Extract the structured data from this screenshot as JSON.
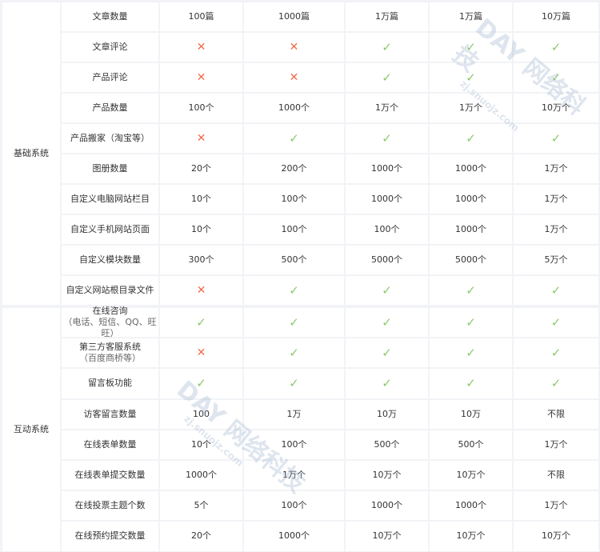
{
  "colors": {
    "check": "#8cc96a",
    "cross": "#f26b4d",
    "background": "#f2f3f6"
  },
  "icons": {
    "yes": "check-icon",
    "no": "cross-icon"
  },
  "symbols": {
    "yes": "✓",
    "no": "✕"
  },
  "watermark": {
    "logo": "DAY 网络科技",
    "url": "zj.snuojz.com"
  },
  "sections": [
    {
      "category": "基础系统",
      "rows": [
        {
          "feature": "文章数量",
          "values": [
            "100篇",
            "1000篇",
            "1万篇",
            "1万篇",
            "10万篇"
          ]
        },
        {
          "feature": "文章评论",
          "values": [
            "no",
            "no",
            "yes",
            "yes",
            "yes"
          ]
        },
        {
          "feature": "产品评论",
          "values": [
            "no",
            "no",
            "yes",
            "yes",
            "yes"
          ]
        },
        {
          "feature": "产品数量",
          "values": [
            "100个",
            "1000个",
            "1万个",
            "1万个",
            "10万个"
          ]
        },
        {
          "feature": "产品搬家（淘宝等）",
          "values": [
            "no",
            "yes",
            "yes",
            "yes",
            "yes"
          ]
        },
        {
          "feature": "图册数量",
          "values": [
            "20个",
            "200个",
            "1000个",
            "1000个",
            "1万个"
          ]
        },
        {
          "feature": "自定义电脑网站栏目",
          "values": [
            "10个",
            "100个",
            "1000个",
            "1000个",
            "1万个"
          ]
        },
        {
          "feature": "自定义手机网站页面",
          "values": [
            "10个",
            "100个",
            "100个",
            "1000个",
            "1万个"
          ]
        },
        {
          "feature": "自定义模块数量",
          "values": [
            "300个",
            "500个",
            "5000个",
            "5000个",
            "5万个"
          ]
        },
        {
          "feature": "自定义网站根目录文件",
          "values": [
            "no",
            "yes",
            "yes",
            "yes",
            "yes"
          ]
        }
      ]
    },
    {
      "category": "互动系统",
      "rows": [
        {
          "feature": "在线咨询",
          "sub": "（电话、短信、QQ、旺旺）",
          "values": [
            "yes",
            "yes",
            "yes",
            "yes",
            "yes"
          ]
        },
        {
          "feature": "第三方客服系统",
          "sub": "（百度商桥等）",
          "values": [
            "no",
            "yes",
            "yes",
            "yes",
            "yes"
          ]
        },
        {
          "feature": "留言板功能",
          "values": [
            "yes",
            "yes",
            "yes",
            "yes",
            "yes"
          ]
        },
        {
          "feature": "访客留言数量",
          "values": [
            "100",
            "1万",
            "10万",
            "10万",
            "不限"
          ]
        },
        {
          "feature": "在线表单数量",
          "values": [
            "10个",
            "100个",
            "500个",
            "500个",
            "1万个"
          ]
        },
        {
          "feature": "在线表单提交数量",
          "values": [
            "1000个",
            "1万个",
            "10万个",
            "10万个",
            "不限"
          ]
        },
        {
          "feature": "在线投票主题个数",
          "values": [
            "5个",
            "100个",
            "1000个",
            "1000个",
            "1万个"
          ]
        },
        {
          "feature": "在线预约提交数量",
          "values": [
            "20个",
            "1000个",
            "10万个",
            "10万个",
            "10万个"
          ]
        }
      ]
    }
  ]
}
